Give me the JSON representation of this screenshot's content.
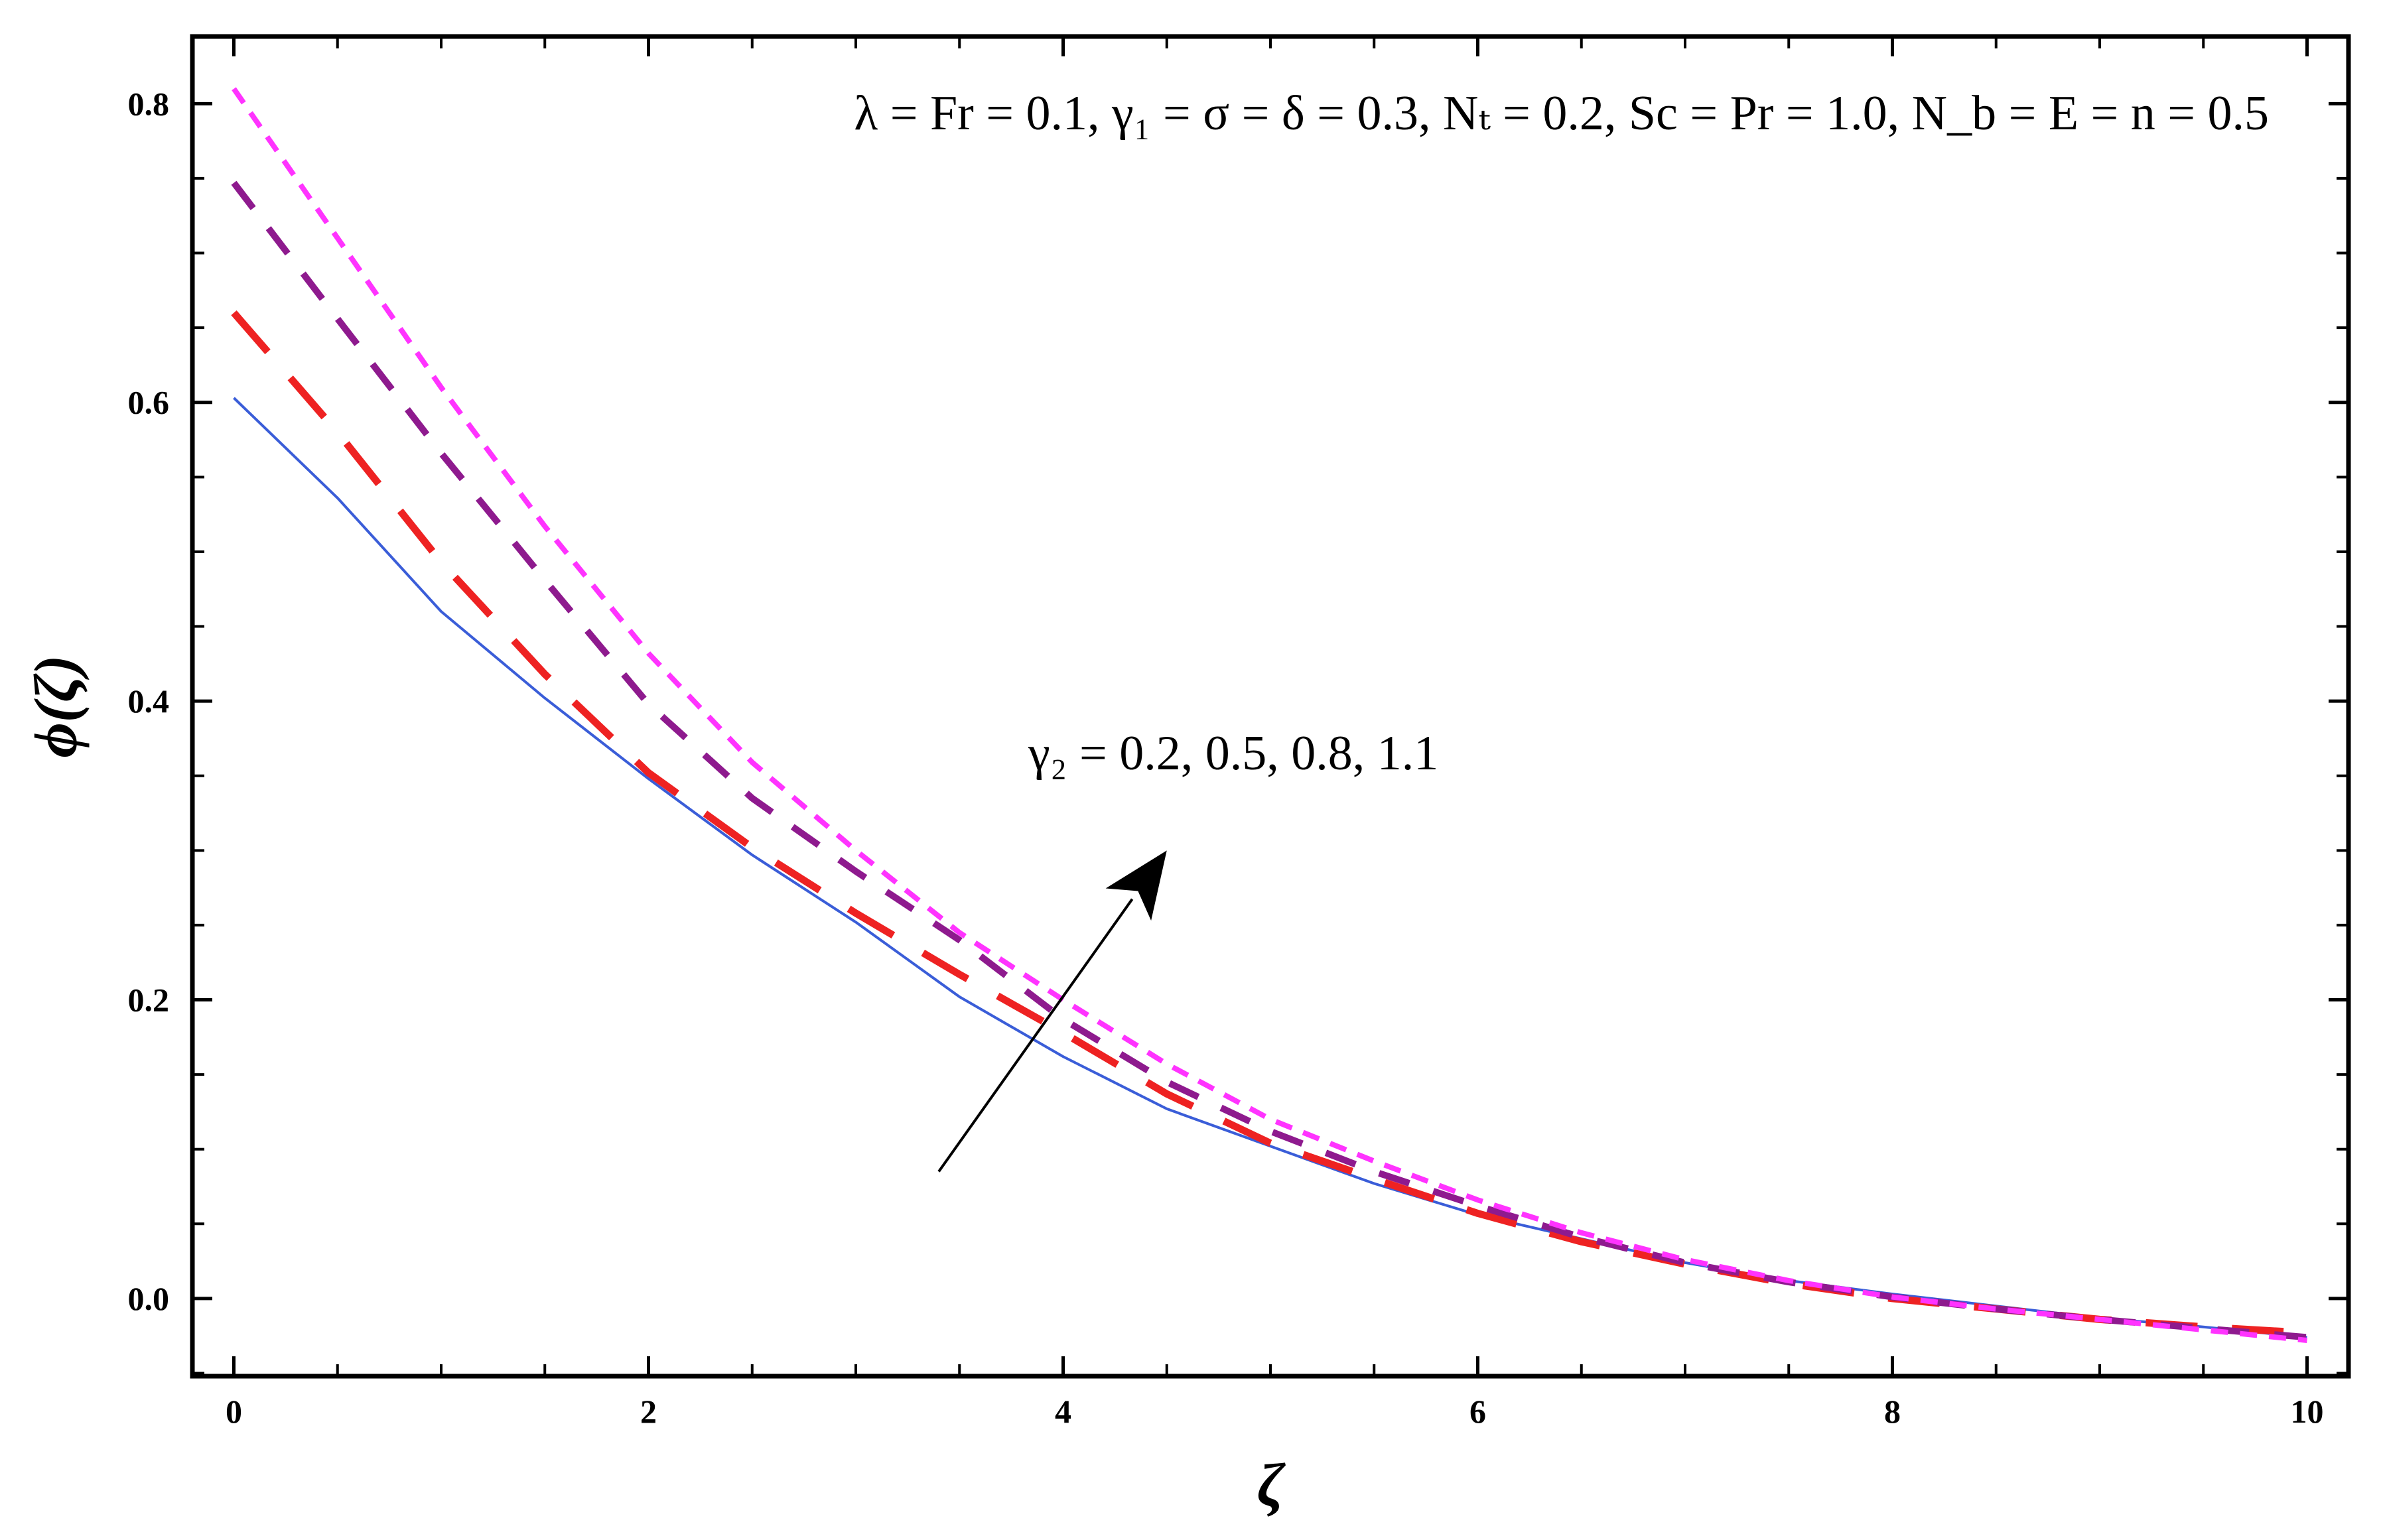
{
  "chart_data": {
    "type": "line",
    "title": "",
    "xlabel": "ζ",
    "ylabel": "ϕ(ζ)",
    "xlim": [
      -0.2,
      10.2
    ],
    "ylim": [
      -0.052,
      0.845
    ],
    "x_ticks": [
      0,
      2,
      4,
      6,
      8,
      10
    ],
    "x_tick_labels": [
      "0",
      "2",
      "4",
      "6",
      "8",
      "10"
    ],
    "y_ticks": [
      0.0,
      0.2,
      0.4,
      0.6,
      0.8
    ],
    "y_tick_labels": [
      "0.0",
      "0.2",
      "0.4",
      "0.6",
      "0.8"
    ],
    "x_minor_step": 0.5,
    "y_minor_step": 0.05,
    "grid": false,
    "legend": "none",
    "annotations": {
      "parameters": "λ = Fr = 0.1, γ₁ = σ = δ = 0.3, Nₜ = 0.2, Sc = Pr = 1.0, N_b = E = n = 0.5",
      "variation": "γ₂ = 0.2, 0.5, 0.8, 1.1",
      "arrow_from": [
        3.4,
        0.085
      ],
      "arrow_to": [
        4.5,
        0.3
      ]
    },
    "series": [
      {
        "color": "#3a5dd8",
        "line_style": "solid",
        "x": [
          0,
          0.5,
          1,
          1.5,
          2,
          2.5,
          3,
          3.5,
          4,
          4.5,
          5,
          5.5,
          6,
          6.5,
          7,
          7.5,
          8,
          8.5,
          9,
          9.5,
          10
        ],
        "y": [
          0.603,
          0.536,
          0.46,
          0.402,
          0.348,
          0.297,
          0.252,
          0.202,
          0.162,
          0.127,
          0.102,
          0.077,
          0.056,
          0.04,
          0.024,
          0.012,
          0.003,
          -0.005,
          -0.013,
          -0.019,
          -0.026
        ]
      },
      {
        "color": "#ee2222",
        "line_style": "long-dash",
        "x": [
          0,
          0.5,
          1,
          1.5,
          2,
          2.5,
          3,
          3.5,
          4,
          4.5,
          5,
          5.5,
          6,
          6.5,
          7,
          7.5,
          8,
          8.5,
          9,
          9.5,
          10
        ],
        "y": [
          0.66,
          0.58,
          0.493,
          0.418,
          0.352,
          0.302,
          0.258,
          0.217,
          0.178,
          0.137,
          0.104,
          0.08,
          0.057,
          0.038,
          0.023,
          0.01,
          0.0,
          -0.007,
          -0.014,
          -0.019,
          -0.023
        ]
      },
      {
        "color": "#8e1a8e",
        "line_style": "dash",
        "x": [
          0,
          0.5,
          1,
          1.5,
          2,
          2.5,
          3,
          3.5,
          4,
          4.5,
          5,
          5.5,
          6,
          6.5,
          7,
          7.5,
          8,
          8.5,
          9,
          9.5,
          10
        ],
        "y": [
          0.747,
          0.656,
          0.566,
          0.481,
          0.398,
          0.335,
          0.286,
          0.24,
          0.187,
          0.145,
          0.112,
          0.085,
          0.062,
          0.041,
          0.024,
          0.011,
          0.001,
          -0.007,
          -0.014,
          -0.02,
          -0.026
        ]
      },
      {
        "color": "#ff33ff",
        "line_style": "short-dash",
        "x": [
          0,
          0.5,
          1,
          1.5,
          2,
          2.5,
          3,
          3.5,
          4,
          4.5,
          5,
          5.5,
          6,
          6.5,
          7,
          7.5,
          8,
          8.5,
          9,
          9.5,
          10
        ],
        "y": [
          0.81,
          0.71,
          0.61,
          0.517,
          0.432,
          0.359,
          0.3,
          0.245,
          0.2,
          0.157,
          0.12,
          0.092,
          0.066,
          0.044,
          0.026,
          0.012,
          0.001,
          -0.007,
          -0.014,
          -0.021,
          -0.028
        ]
      }
    ]
  }
}
